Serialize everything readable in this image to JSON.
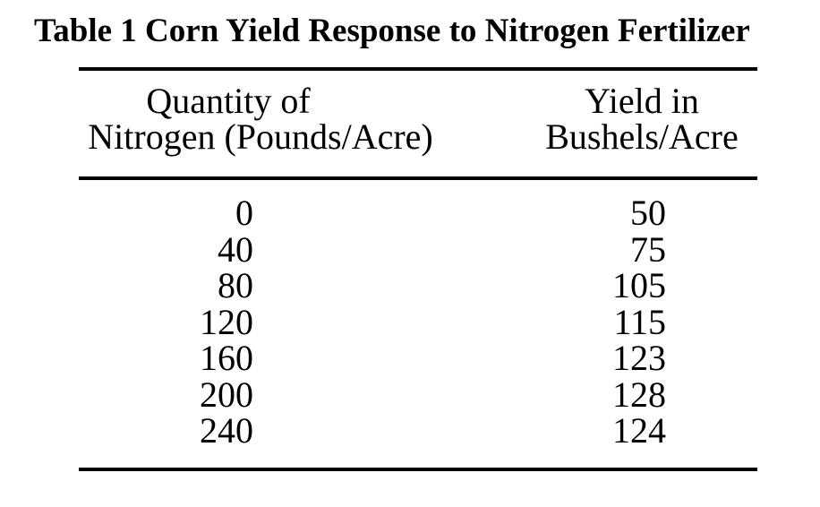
{
  "title": "Table 1 Corn Yield Response to Nitrogen Fertilizer",
  "header": {
    "col1_line1": "Quantity of",
    "col1_line2": "Nitrogen (Pounds/Acre)",
    "col2_line1": "Yield in",
    "col2_line2": "Bushels/Acre"
  },
  "rows": [
    {
      "nitrogen": "0",
      "yield": "50"
    },
    {
      "nitrogen": "40",
      "yield": "75"
    },
    {
      "nitrogen": "80",
      "yield": "105"
    },
    {
      "nitrogen": "120",
      "yield": "115"
    },
    {
      "nitrogen": "160",
      "yield": "123"
    },
    {
      "nitrogen": "200",
      "yield": "128"
    },
    {
      "nitrogen": "240",
      "yield": "124"
    }
  ],
  "colors": {
    "text": "#000000",
    "rule": "#000000",
    "background": "#ffffff"
  },
  "chart_data": {
    "type": "table",
    "title": "Table 1 Corn Yield Response to Nitrogen Fertilizer",
    "columns": [
      "Quantity of Nitrogen (Pounds/Acre)",
      "Yield in Bushels/Acre"
    ],
    "x": [
      0,
      40,
      80,
      120,
      160,
      200,
      240
    ],
    "series": [
      {
        "name": "Yield in Bushels/Acre",
        "values": [
          50,
          75,
          105,
          115,
          123,
          128,
          124
        ]
      }
    ]
  }
}
